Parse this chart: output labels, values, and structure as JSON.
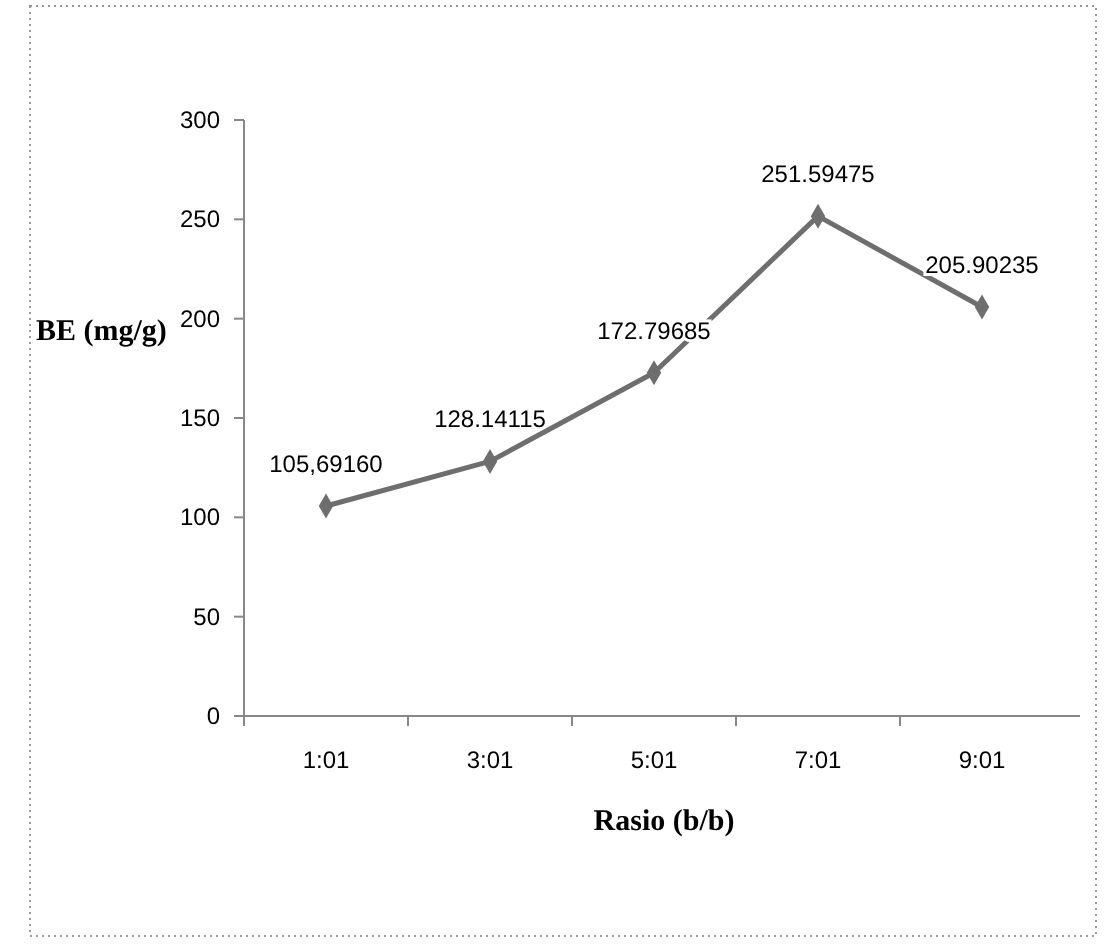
{
  "chart_data": {
    "type": "line",
    "xlabel": "Rasio (b/b)",
    "ylabel": "BE (mg/g)",
    "categories": [
      "1:01",
      "3:01",
      "5:01",
      "7:01",
      "9:01"
    ],
    "series": [
      {
        "color": "#6e6e6e",
        "values": [
          105.6916,
          128.14115,
          172.79685,
          251.59475,
          205.90235
        ],
        "value_labels": [
          "105,69160",
          "128.14115",
          "172.79685",
          "251.59475",
          "205.90235"
        ]
      }
    ],
    "ylim": [
      0,
      300
    ],
    "yticks": [
      0,
      50,
      100,
      150,
      200,
      250,
      300
    ],
    "grid": false,
    "marker": "diamond",
    "line_style": "solid"
  }
}
